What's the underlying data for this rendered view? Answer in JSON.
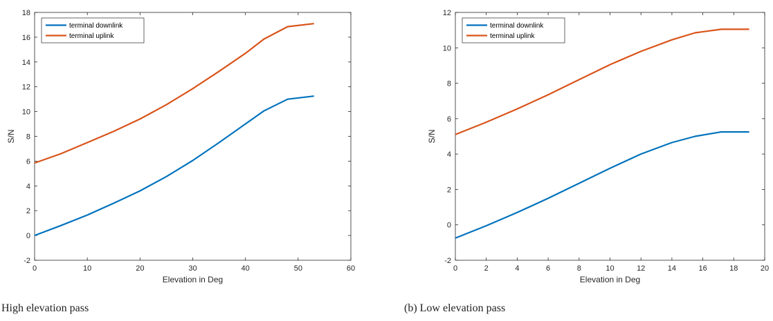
{
  "chart_data": [
    {
      "type": "line",
      "xlabel": "Elevation in Deg",
      "ylabel": "S/N",
      "xlim": [
        0,
        60
      ],
      "ylim": [
        -2,
        18
      ],
      "xticks": [
        0,
        10,
        20,
        30,
        40,
        50,
        60
      ],
      "yticks": [
        -2,
        0,
        2,
        4,
        6,
        8,
        10,
        12,
        14,
        16,
        18
      ],
      "grid": false,
      "legend": "top-left",
      "series": [
        {
          "name": "terminal downlink",
          "color": "#0072BD",
          "x": [
            0,
            5,
            10,
            15,
            20,
            25,
            30,
            35,
            40,
            43.5,
            48,
            53
          ],
          "y": [
            0,
            0.8,
            1.65,
            2.6,
            3.6,
            4.75,
            6.05,
            7.5,
            9.0,
            10.05,
            11.0,
            11.25
          ]
        },
        {
          "name": "terminal uplink",
          "color": "#D95319",
          "x": [
            0,
            5,
            10,
            15,
            20,
            25,
            30,
            35,
            40,
            43.5,
            48,
            53
          ],
          "y": [
            5.85,
            6.6,
            7.5,
            8.4,
            9.4,
            10.55,
            11.85,
            13.25,
            14.7,
            15.85,
            16.85,
            17.1
          ]
        }
      ]
    },
    {
      "type": "line",
      "xlabel": "Elevation in Deg",
      "ylabel": "S/N",
      "xlim": [
        0,
        20
      ],
      "ylim": [
        -2,
        12
      ],
      "xticks": [
        0,
        2,
        4,
        6,
        8,
        10,
        12,
        14,
        16,
        18,
        20
      ],
      "yticks": [
        -2,
        0,
        2,
        4,
        6,
        8,
        10,
        12
      ],
      "grid": false,
      "legend": "top-left",
      "series": [
        {
          "name": "terminal downlink",
          "color": "#0072BD",
          "x": [
            0,
            2,
            4,
            6,
            8,
            10,
            12,
            14,
            15.5,
            17.2,
            19
          ],
          "y": [
            -0.75,
            -0.05,
            0.7,
            1.5,
            2.35,
            3.2,
            4.0,
            4.65,
            5.0,
            5.25,
            5.25
          ]
        },
        {
          "name": "terminal uplink",
          "color": "#D95319",
          "x": [
            0,
            2,
            4,
            6,
            8,
            10,
            12,
            14,
            15.5,
            17.2,
            19
          ],
          "y": [
            5.1,
            5.8,
            6.55,
            7.35,
            8.2,
            9.05,
            9.8,
            10.45,
            10.85,
            11.05,
            11.05
          ]
        }
      ]
    }
  ],
  "captions": {
    "a": "High elevation pass",
    "b": "(b) Low elevation pass"
  }
}
